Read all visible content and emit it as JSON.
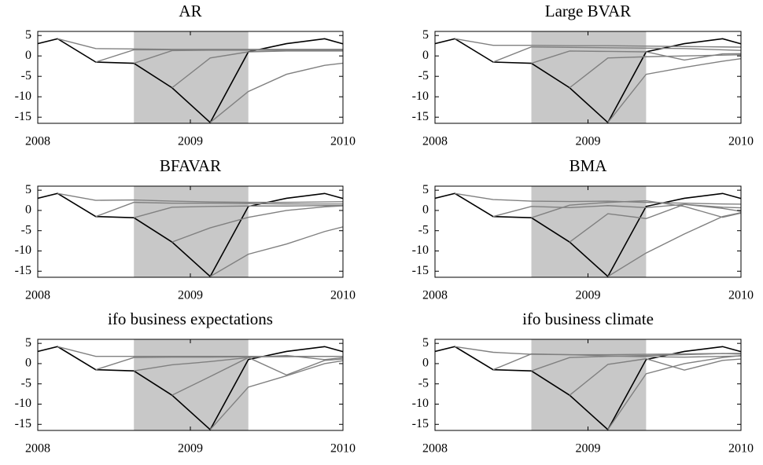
{
  "chart_data": [
    {
      "type": "line",
      "title": "AR",
      "x": [
        2007.88,
        2008.13,
        2008.38,
        2008.63,
        2008.88,
        2009.13,
        2009.38,
        2009.63,
        2009.88,
        2010.13
      ],
      "xlim": [
        2008,
        2010
      ],
      "xticks": [
        2008,
        2009,
        2010
      ],
      "ylim": [
        -16.5,
        6
      ],
      "yticks": [
        5,
        0,
        -5,
        -10,
        -15
      ],
      "shade": [
        2008.63,
        2009.38
      ],
      "shade_color": "#c8c8c8",
      "series": [
        {
          "color": "#000000",
          "values": [
            1.9,
            4.2,
            -1.5,
            -1.8,
            -7.8,
            -16.3,
            1.0,
            3.0,
            4.2,
            1.6
          ]
        },
        {
          "color": "#808080",
          "values": [
            null,
            4.2,
            1.8,
            1.7,
            1.6,
            1.6,
            1.6,
            1.6,
            1.6,
            1.6
          ]
        },
        {
          "color": "#808080",
          "values": [
            null,
            null,
            -1.5,
            1.5,
            1.5,
            1.5,
            1.5,
            1.5,
            1.5,
            1.5
          ]
        },
        {
          "color": "#808080",
          "values": [
            null,
            null,
            null,
            -1.8,
            1.3,
            1.4,
            1.4,
            1.4,
            1.4,
            1.4
          ]
        },
        {
          "color": "#808080",
          "values": [
            null,
            null,
            null,
            null,
            -7.8,
            -0.5,
            1.0,
            1.2,
            1.2,
            1.2
          ]
        },
        {
          "color": "#808080",
          "values": [
            null,
            null,
            null,
            null,
            null,
            -16.3,
            -8.7,
            -4.5,
            -2.3,
            -1.2
          ]
        }
      ]
    },
    {
      "type": "line",
      "title": "Large BVAR",
      "x": [
        2007.88,
        2008.13,
        2008.38,
        2008.63,
        2008.88,
        2009.13,
        2009.38,
        2009.63,
        2009.88,
        2010.13
      ],
      "xlim": [
        2008,
        2010
      ],
      "xticks": [
        2008,
        2009,
        2010
      ],
      "ylim": [
        -16.5,
        6
      ],
      "yticks": [
        5,
        0,
        -5,
        -10,
        -15
      ],
      "shade": [
        2008.63,
        2009.38
      ],
      "shade_color": "#c8c8c8",
      "series": [
        {
          "color": "#000000",
          "values": [
            1.9,
            4.2,
            -1.5,
            -1.8,
            -7.8,
            -16.3,
            1.0,
            3.0,
            4.2,
            1.6
          ]
        },
        {
          "color": "#808080",
          "values": [
            null,
            4.2,
            2.6,
            2.6,
            2.5,
            2.5,
            2.4,
            2.3,
            2.2,
            2.1
          ]
        },
        {
          "color": "#808080",
          "values": [
            null,
            null,
            -1.5,
            2.2,
            2.1,
            2.0,
            1.9,
            1.8,
            1.5,
            1.2
          ]
        },
        {
          "color": "#808080",
          "values": [
            null,
            null,
            null,
            -1.8,
            1.2,
            1.1,
            1.0,
            -1.0,
            0.5,
            0.6
          ]
        },
        {
          "color": "#808080",
          "values": [
            null,
            null,
            null,
            null,
            -7.8,
            -0.5,
            -0.2,
            0.0,
            0.2,
            0.4
          ]
        },
        {
          "color": "#808080",
          "values": [
            null,
            null,
            null,
            null,
            null,
            -16.3,
            -4.5,
            -2.8,
            -1.3,
            0.0
          ]
        }
      ]
    },
    {
      "type": "line",
      "title": "BFAVAR",
      "x": [
        2007.88,
        2008.13,
        2008.38,
        2008.63,
        2008.88,
        2009.13,
        2009.38,
        2009.63,
        2009.88,
        2010.13
      ],
      "xlim": [
        2008,
        2010
      ],
      "xticks": [
        2008,
        2009,
        2010
      ],
      "ylim": [
        -16.5,
        6
      ],
      "yticks": [
        5,
        0,
        -5,
        -10,
        -15
      ],
      "shade": [
        2008.63,
        2009.38
      ],
      "shade_color": "#c8c8c8",
      "series": [
        {
          "color": "#000000",
          "values": [
            1.9,
            4.2,
            -1.5,
            -1.8,
            -7.8,
            -16.3,
            1.0,
            3.0,
            4.2,
            1.6
          ]
        },
        {
          "color": "#808080",
          "values": [
            null,
            4.2,
            2.5,
            2.6,
            2.3,
            2.1,
            2.0,
            2.0,
            2.1,
            2.2
          ]
        },
        {
          "color": "#808080",
          "values": [
            null,
            null,
            -1.5,
            2.0,
            1.8,
            1.8,
            1.7,
            1.6,
            1.6,
            1.6
          ]
        },
        {
          "color": "#808080",
          "values": [
            null,
            null,
            null,
            -1.8,
            0.8,
            1.0,
            1.1,
            1.1,
            1.2,
            1.2
          ]
        },
        {
          "color": "#808080",
          "values": [
            null,
            null,
            null,
            null,
            -7.8,
            -4.3,
            -1.7,
            0.0,
            0.9,
            1.4
          ]
        },
        {
          "color": "#808080",
          "values": [
            null,
            null,
            null,
            null,
            null,
            -16.3,
            -10.8,
            -8.3,
            -5.2,
            -2.8
          ]
        }
      ]
    },
    {
      "type": "line",
      "title": "BMA",
      "x": [
        2007.88,
        2008.13,
        2008.38,
        2008.63,
        2008.88,
        2009.13,
        2009.38,
        2009.63,
        2009.88,
        2010.13
      ],
      "xlim": [
        2008,
        2010
      ],
      "xticks": [
        2008,
        2009,
        2010
      ],
      "ylim": [
        -16.5,
        6
      ],
      "yticks": [
        5,
        0,
        -5,
        -10,
        -15
      ],
      "shade": [
        2008.63,
        2009.38
      ],
      "shade_color": "#c8c8c8",
      "series": [
        {
          "color": "#000000",
          "values": [
            1.9,
            4.2,
            -1.5,
            -1.8,
            -7.8,
            -16.3,
            1.0,
            3.0,
            4.2,
            1.6
          ]
        },
        {
          "color": "#808080",
          "values": [
            null,
            4.2,
            2.7,
            2.3,
            2.2,
            2.3,
            2.0,
            1.8,
            1.6,
            1.5
          ]
        },
        {
          "color": "#808080",
          "values": [
            null,
            null,
            -1.5,
            1.0,
            0.7,
            1.2,
            0.7,
            1.5,
            0.8,
            0.5
          ]
        },
        {
          "color": "#808080",
          "values": [
            null,
            null,
            null,
            -1.8,
            1.3,
            2.0,
            2.4,
            1.0,
            -1.7,
            0.5
          ]
        },
        {
          "color": "#808080",
          "values": [
            null,
            null,
            null,
            null,
            -7.8,
            -0.8,
            -2.0,
            1.5,
            0.5,
            -1.0
          ]
        },
        {
          "color": "#808080",
          "values": [
            null,
            null,
            null,
            null,
            null,
            -16.3,
            -10.5,
            -5.8,
            -1.5,
            0.5
          ]
        }
      ]
    },
    {
      "type": "line",
      "title": "ifo business expectations",
      "x": [
        2007.88,
        2008.13,
        2008.38,
        2008.63,
        2008.88,
        2009.13,
        2009.38,
        2009.63,
        2009.88,
        2010.13
      ],
      "xlim": [
        2008,
        2010
      ],
      "xticks": [
        2008,
        2009,
        2010
      ],
      "ylim": [
        -16.5,
        6
      ],
      "yticks": [
        5,
        0,
        -5,
        -10,
        -15
      ],
      "shade": [
        2008.63,
        2009.38
      ],
      "shade_color": "#c8c8c8",
      "series": [
        {
          "color": "#000000",
          "values": [
            1.9,
            4.2,
            -1.5,
            -1.8,
            -7.8,
            -16.3,
            1.0,
            3.0,
            4.2,
            1.6
          ]
        },
        {
          "color": "#808080",
          "values": [
            null,
            4.2,
            1.8,
            1.8,
            1.8,
            1.8,
            1.8,
            1.8,
            1.8,
            1.8
          ]
        },
        {
          "color": "#808080",
          "values": [
            null,
            null,
            -1.5,
            1.5,
            1.6,
            1.6,
            1.7,
            1.7,
            1.8,
            1.8
          ]
        },
        {
          "color": "#808080",
          "values": [
            null,
            null,
            null,
            -1.8,
            -0.3,
            0.5,
            1.5,
            2.0,
            1.0,
            2.0
          ]
        },
        {
          "color": "#808080",
          "values": [
            null,
            null,
            null,
            null,
            -7.8,
            -3.2,
            1.5,
            -2.8,
            0.8,
            1.5
          ]
        },
        {
          "color": "#808080",
          "values": [
            null,
            null,
            null,
            null,
            null,
            -16.3,
            -5.8,
            -3.0,
            0.0,
            1.5
          ]
        }
      ]
    },
    {
      "type": "line",
      "title": "ifo business climate",
      "x": [
        2007.88,
        2008.13,
        2008.38,
        2008.63,
        2008.88,
        2009.13,
        2009.38,
        2009.63,
        2009.88,
        2010.13
      ],
      "xlim": [
        2008,
        2010
      ],
      "xticks": [
        2008,
        2009,
        2010
      ],
      "ylim": [
        -16.5,
        6
      ],
      "yticks": [
        5,
        0,
        -5,
        -10,
        -15
      ],
      "shade": [
        2008.63,
        2009.38
      ],
      "shade_color": "#c8c8c8",
      "series": [
        {
          "color": "#000000",
          "values": [
            1.9,
            4.2,
            -1.5,
            -1.8,
            -7.8,
            -16.3,
            1.0,
            3.0,
            4.2,
            1.6
          ]
        },
        {
          "color": "#808080",
          "values": [
            null,
            4.2,
            2.8,
            2.3,
            2.2,
            2.2,
            2.3,
            2.4,
            2.5,
            2.6
          ]
        },
        {
          "color": "#808080",
          "values": [
            null,
            null,
            -1.5,
            2.4,
            2.2,
            1.9,
            1.7,
            1.6,
            1.8,
            2.0
          ]
        },
        {
          "color": "#808080",
          "values": [
            null,
            null,
            null,
            -1.8,
            1.5,
            1.8,
            2.0,
            2.2,
            2.5,
            2.2
          ]
        },
        {
          "color": "#808080",
          "values": [
            null,
            null,
            null,
            null,
            -7.8,
            -0.2,
            1.2,
            -1.6,
            0.8,
            1.5
          ]
        },
        {
          "color": "#808080",
          "values": [
            null,
            null,
            null,
            null,
            null,
            -16.3,
            -2.5,
            0.0,
            1.5,
            2.5
          ]
        }
      ]
    }
  ]
}
